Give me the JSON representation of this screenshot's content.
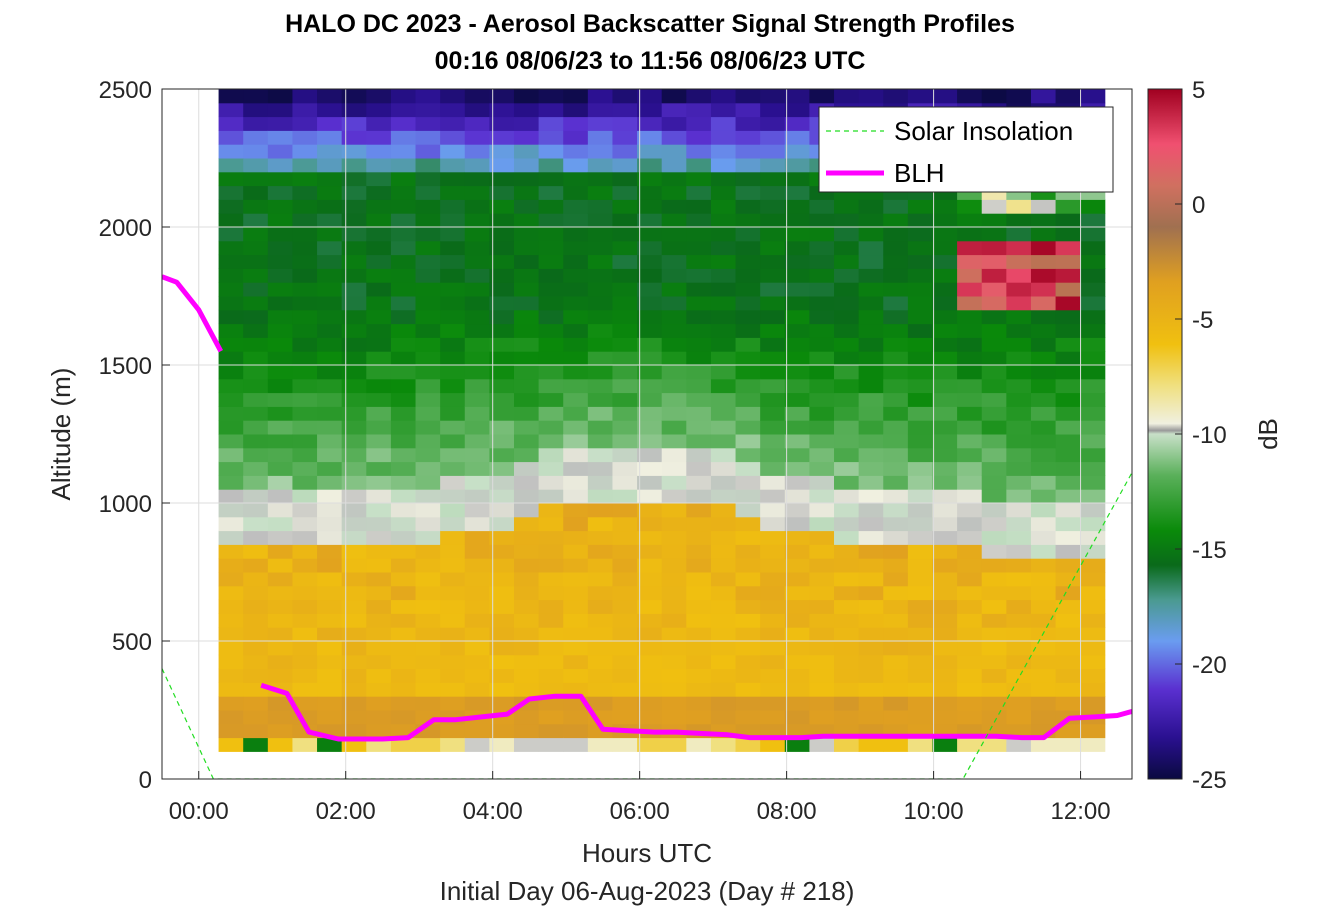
{
  "chart_data": {
    "type": "heatmap",
    "title": "HALO DC 2023 - Aerosol Backscatter Signal Strength Profiles",
    "subtitle": "00:16 08/06/23 to 11:56 08/06/23  UTC",
    "xlabel": "Hours UTC",
    "ylabel": "Altitude (m)",
    "footer": "Initial Day 06-Aug-2023 (Day # 218)",
    "xlim": [
      -0.5,
      12.7
    ],
    "ylim": [
      0,
      2500
    ],
    "x_ticks": [
      {
        "value": 0,
        "label": "00:00"
      },
      {
        "value": 2,
        "label": "02:00"
      },
      {
        "value": 4,
        "label": "04:00"
      },
      {
        "value": 6,
        "label": "06:00"
      },
      {
        "value": 8,
        "label": "08:00"
      },
      {
        "value": 10,
        "label": "10:00"
      },
      {
        "value": 12,
        "label": "12:00"
      }
    ],
    "y_ticks": [
      {
        "value": 0,
        "label": "0"
      },
      {
        "value": 500,
        "label": "500"
      },
      {
        "value": 1000,
        "label": "1000"
      },
      {
        "value": 1500,
        "label": "1500"
      },
      {
        "value": 2000,
        "label": "2000"
      },
      {
        "value": 2500,
        "label": "2500"
      }
    ],
    "colorbar": {
      "label": "dB",
      "range": [
        -25,
        5
      ],
      "ticks": [
        {
          "value": 5,
          "label": "5"
        },
        {
          "value": 0,
          "label": "0"
        },
        {
          "value": -5,
          "label": "-5"
        },
        {
          "value": -10,
          "label": "-10"
        },
        {
          "value": -15,
          "label": "-15"
        },
        {
          "value": -20,
          "label": "-20"
        },
        {
          "value": -25,
          "label": "-25"
        }
      ]
    },
    "grid": true,
    "legend": {
      "placement": "top-right",
      "entries": [
        {
          "name": "Solar Insolation",
          "style": "dashed",
          "color": "#22dd22"
        },
        {
          "name": "BLH",
          "style": "solid",
          "color": "#ff00ff"
        }
      ]
    },
    "heatmap": {
      "x_start": 0.27,
      "x_step": 0.335,
      "y_start": 100,
      "y_step": 50,
      "note_rows": "rows from bottom (100-150 m) to top (2450-2500 m); values in dB",
      "profiles_at_time_bands": [
        {
          "t_from": 0.27,
          "t_to": 12.0,
          "altitude": [
            100,
            150,
            200,
            300,
            400,
            500,
            600,
            700,
            800,
            900,
            1000,
            1100,
            1200,
            1300,
            1400,
            1500,
            1600,
            1700,
            1800,
            1900,
            2000,
            2100,
            2200,
            2300,
            2400,
            2500
          ]
        }
      ]
    },
    "series": [
      {
        "name": "BLH",
        "x": [
          -0.5,
          -0.3,
          0.0,
          0.3,
          0.45,
          0.85,
          1.2,
          1.5,
          1.9,
          2.2,
          2.5,
          2.85,
          3.2,
          3.5,
          3.85,
          4.2,
          4.5,
          4.85,
          5.2,
          5.5,
          5.85,
          6.2,
          6.5,
          6.85,
          7.2,
          7.5,
          7.85,
          8.2,
          8.5,
          8.85,
          9.2,
          9.5,
          9.85,
          10.2,
          10.5,
          10.85,
          11.2,
          11.5,
          11.85,
          12.2,
          12.5,
          12.7
        ],
        "y": [
          1820,
          1800,
          1700,
          1550,
          null,
          340,
          310,
          170,
          145,
          145,
          145,
          150,
          215,
          215,
          225,
          235,
          290,
          300,
          300,
          180,
          175,
          170,
          170,
          165,
          160,
          150,
          150,
          150,
          155,
          155,
          155,
          155,
          155,
          155,
          155,
          155,
          150,
          150,
          220,
          225,
          230,
          245
        ]
      },
      {
        "name": "Solar Insolation",
        "x": [
          -0.5,
          0.2,
          0.3,
          10.3,
          10.4,
          12.7
        ],
        "y": [
          400,
          0,
          0,
          0,
          0,
          1110
        ]
      }
    ]
  }
}
